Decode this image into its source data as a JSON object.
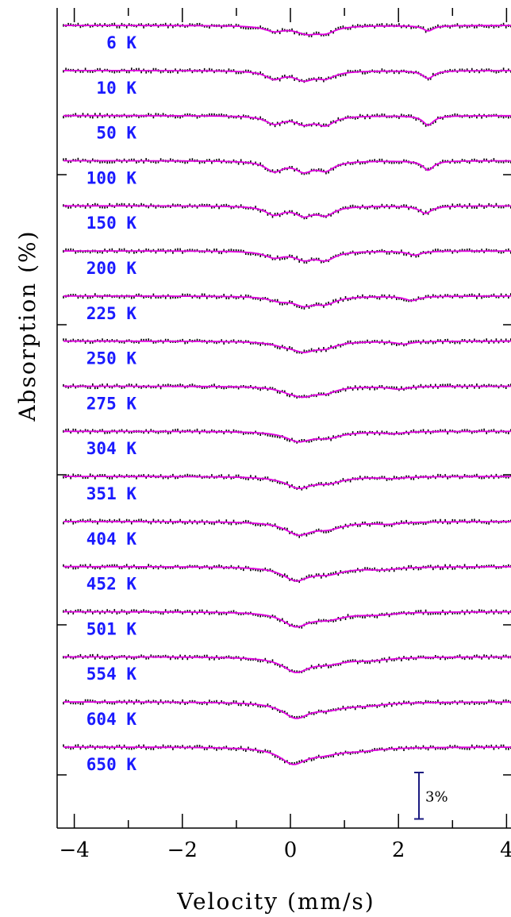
{
  "chart_data": {
    "type": "line",
    "title": "",
    "xlabel": "Velocity (mm/s)",
    "ylabel": "Absorption (%)",
    "xlim": [
      -4.2,
      4.2
    ],
    "xticks": [
      -4,
      -2,
      0,
      2,
      4
    ],
    "x_tick_labels": [
      "−4",
      "−2",
      "0",
      "2",
      "4"
    ],
    "scale_bar": {
      "label": "3%",
      "value_percent": 3
    },
    "colors": {
      "fit": "#e000e0",
      "data": "#000000",
      "labels": "#1a1aff",
      "scalebar": "#1a1a80"
    },
    "series": [
      {
        "label": "6 K",
        "dips": [
          [
            -0.3,
            1.5,
            0.22
          ],
          [
            0.3,
            2.1,
            0.26
          ],
          [
            0.65,
            1.8,
            0.22
          ],
          [
            2.55,
            1.6,
            0.12
          ]
        ]
      },
      {
        "label": "10 K",
        "dips": [
          [
            -0.3,
            2.3,
            0.2
          ],
          [
            0.25,
            2.5,
            0.22
          ],
          [
            0.65,
            2.0,
            0.22
          ],
          [
            2.55,
            2.3,
            0.13
          ]
        ]
      },
      {
        "label": "50 K",
        "dips": [
          [
            -0.3,
            2.3,
            0.2
          ],
          [
            0.25,
            2.2,
            0.2
          ],
          [
            0.65,
            2.6,
            0.2
          ],
          [
            2.55,
            2.8,
            0.12
          ]
        ]
      },
      {
        "label": "100 K",
        "dips": [
          [
            -0.3,
            3.0,
            0.2
          ],
          [
            0.25,
            2.8,
            0.2
          ],
          [
            0.65,
            2.6,
            0.2
          ],
          [
            2.55,
            2.8,
            0.12
          ]
        ]
      },
      {
        "label": "150 K",
        "dips": [
          [
            -0.3,
            2.5,
            0.2
          ],
          [
            0.25,
            2.6,
            0.2
          ],
          [
            0.65,
            2.5,
            0.2
          ],
          [
            2.5,
            2.2,
            0.14
          ]
        ]
      },
      {
        "label": "200 K",
        "dips": [
          [
            -0.3,
            1.8,
            0.22
          ],
          [
            0.25,
            2.2,
            0.22
          ],
          [
            0.65,
            2.4,
            0.22
          ],
          [
            2.3,
            1.2,
            0.15
          ]
        ]
      },
      {
        "label": "225 K",
        "dips": [
          [
            -0.2,
            1.2,
            0.25
          ],
          [
            0.25,
            2.4,
            0.24
          ],
          [
            0.65,
            2.0,
            0.24
          ],
          [
            2.25,
            1.3,
            0.16
          ]
        ]
      },
      {
        "label": "250 K",
        "dips": [
          [
            -0.1,
            1.0,
            0.28
          ],
          [
            0.25,
            2.6,
            0.26
          ],
          [
            0.65,
            1.6,
            0.24
          ],
          [
            2.1,
            0.8,
            0.18
          ]
        ]
      },
      {
        "label": "275 K",
        "dips": [
          [
            0.0,
            1.2,
            0.28
          ],
          [
            0.25,
            2.2,
            0.26
          ],
          [
            0.65,
            1.6,
            0.24
          ],
          [
            2.0,
            0.8,
            0.2
          ]
        ]
      },
      {
        "label": "304 K",
        "dips": [
          [
            0.15,
            2.8,
            0.3
          ],
          [
            0.7,
            1.6,
            0.3
          ],
          [
            1.9,
            0.6,
            0.22
          ]
        ]
      },
      {
        "label": "351 K",
        "dips": [
          [
            0.15,
            3.2,
            0.3
          ],
          [
            0.7,
            1.6,
            0.32
          ],
          [
            1.9,
            0.5,
            0.25
          ]
        ]
      },
      {
        "label": "404 K",
        "dips": [
          [
            0.15,
            3.6,
            0.3
          ],
          [
            0.7,
            1.8,
            0.34
          ],
          [
            1.8,
            0.6,
            0.3
          ]
        ]
      },
      {
        "label": "452 K",
        "dips": [
          [
            0.1,
            3.8,
            0.3
          ],
          [
            0.7,
            1.8,
            0.36
          ],
          [
            1.7,
            0.7,
            0.36
          ]
        ]
      },
      {
        "label": "501 K",
        "dips": [
          [
            0.1,
            4.0,
            0.3
          ],
          [
            0.7,
            1.8,
            0.38
          ],
          [
            1.6,
            0.7,
            0.4
          ]
        ]
      },
      {
        "label": "554 K",
        "dips": [
          [
            0.1,
            4.2,
            0.3
          ],
          [
            0.7,
            1.6,
            0.38
          ],
          [
            1.5,
            0.8,
            0.42
          ]
        ]
      },
      {
        "label": "604 K",
        "dips": [
          [
            0.1,
            4.4,
            0.3
          ],
          [
            0.7,
            1.7,
            0.38
          ],
          [
            1.4,
            0.8,
            0.44
          ]
        ]
      },
      {
        "label": "650 K",
        "dips": [
          [
            0.05,
            4.6,
            0.3
          ],
          [
            0.6,
            1.6,
            0.4
          ],
          [
            1.3,
            0.8,
            0.46
          ]
        ]
      }
    ]
  }
}
